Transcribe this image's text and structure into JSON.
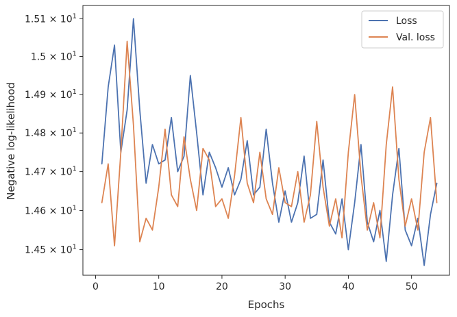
{
  "chart_data": {
    "type": "line",
    "xlabel": "Epochs",
    "ylabel": "Negative log-likelihood",
    "xlim": [
      -2,
      56
    ],
    "ylim": [
      14.435,
      15.135
    ],
    "yscale": "log",
    "grid": false,
    "legend_position": "top-right",
    "xticks": [
      0,
      10,
      20,
      30,
      40,
      50
    ],
    "xtick_labels": [
      "0",
      "10",
      "20",
      "30",
      "40",
      "50"
    ],
    "yticks": [
      14.5,
      14.6,
      14.7,
      14.8,
      14.9,
      15.0,
      15.1
    ],
    "ytick_mantissas": [
      "1.45",
      "1.46",
      "1.47",
      "1.48",
      "1.49",
      "1.5",
      "1.51"
    ],
    "ytick_base": "10",
    "ytick_exponent": "1",
    "x": [
      1,
      2,
      3,
      4,
      5,
      6,
      7,
      8,
      9,
      10,
      11,
      12,
      13,
      14,
      15,
      16,
      17,
      18,
      19,
      20,
      21,
      22,
      23,
      24,
      25,
      26,
      27,
      28,
      29,
      30,
      31,
      32,
      33,
      34,
      35,
      36,
      37,
      38,
      39,
      40,
      41,
      42,
      43,
      44,
      45,
      46,
      47,
      48,
      49,
      50,
      51,
      52,
      53,
      54
    ],
    "series": [
      {
        "name": "Loss",
        "color": "#4c72b0",
        "values": [
          14.72,
          14.92,
          15.03,
          14.75,
          14.86,
          15.1,
          14.86,
          14.67,
          14.77,
          14.72,
          14.73,
          14.84,
          14.7,
          14.74,
          14.95,
          14.8,
          14.64,
          14.75,
          14.71,
          14.66,
          14.71,
          14.64,
          14.68,
          14.78,
          14.64,
          14.66,
          14.81,
          14.67,
          14.57,
          14.65,
          14.57,
          14.62,
          14.74,
          14.58,
          14.59,
          14.73,
          14.57,
          14.54,
          14.63,
          14.5,
          14.62,
          14.77,
          14.57,
          14.52,
          14.6,
          14.47,
          14.64,
          14.76,
          14.55,
          14.51,
          14.58,
          14.46,
          14.59,
          14.67
        ]
      },
      {
        "name": "Val. loss",
        "color": "#dd8452",
        "values": [
          14.62,
          14.72,
          14.51,
          14.75,
          15.04,
          14.82,
          14.52,
          14.58,
          14.55,
          14.66,
          14.81,
          14.64,
          14.61,
          14.79,
          14.68,
          14.6,
          14.76,
          14.73,
          14.61,
          14.63,
          14.58,
          14.69,
          14.84,
          14.67,
          14.62,
          14.75,
          14.63,
          14.59,
          14.71,
          14.62,
          14.61,
          14.7,
          14.57,
          14.64,
          14.83,
          14.66,
          14.56,
          14.63,
          14.53,
          14.75,
          14.9,
          14.69,
          14.55,
          14.62,
          14.53,
          14.77,
          14.92,
          14.68,
          14.56,
          14.63,
          14.55,
          14.75,
          14.84,
          14.62
        ]
      }
    ]
  }
}
